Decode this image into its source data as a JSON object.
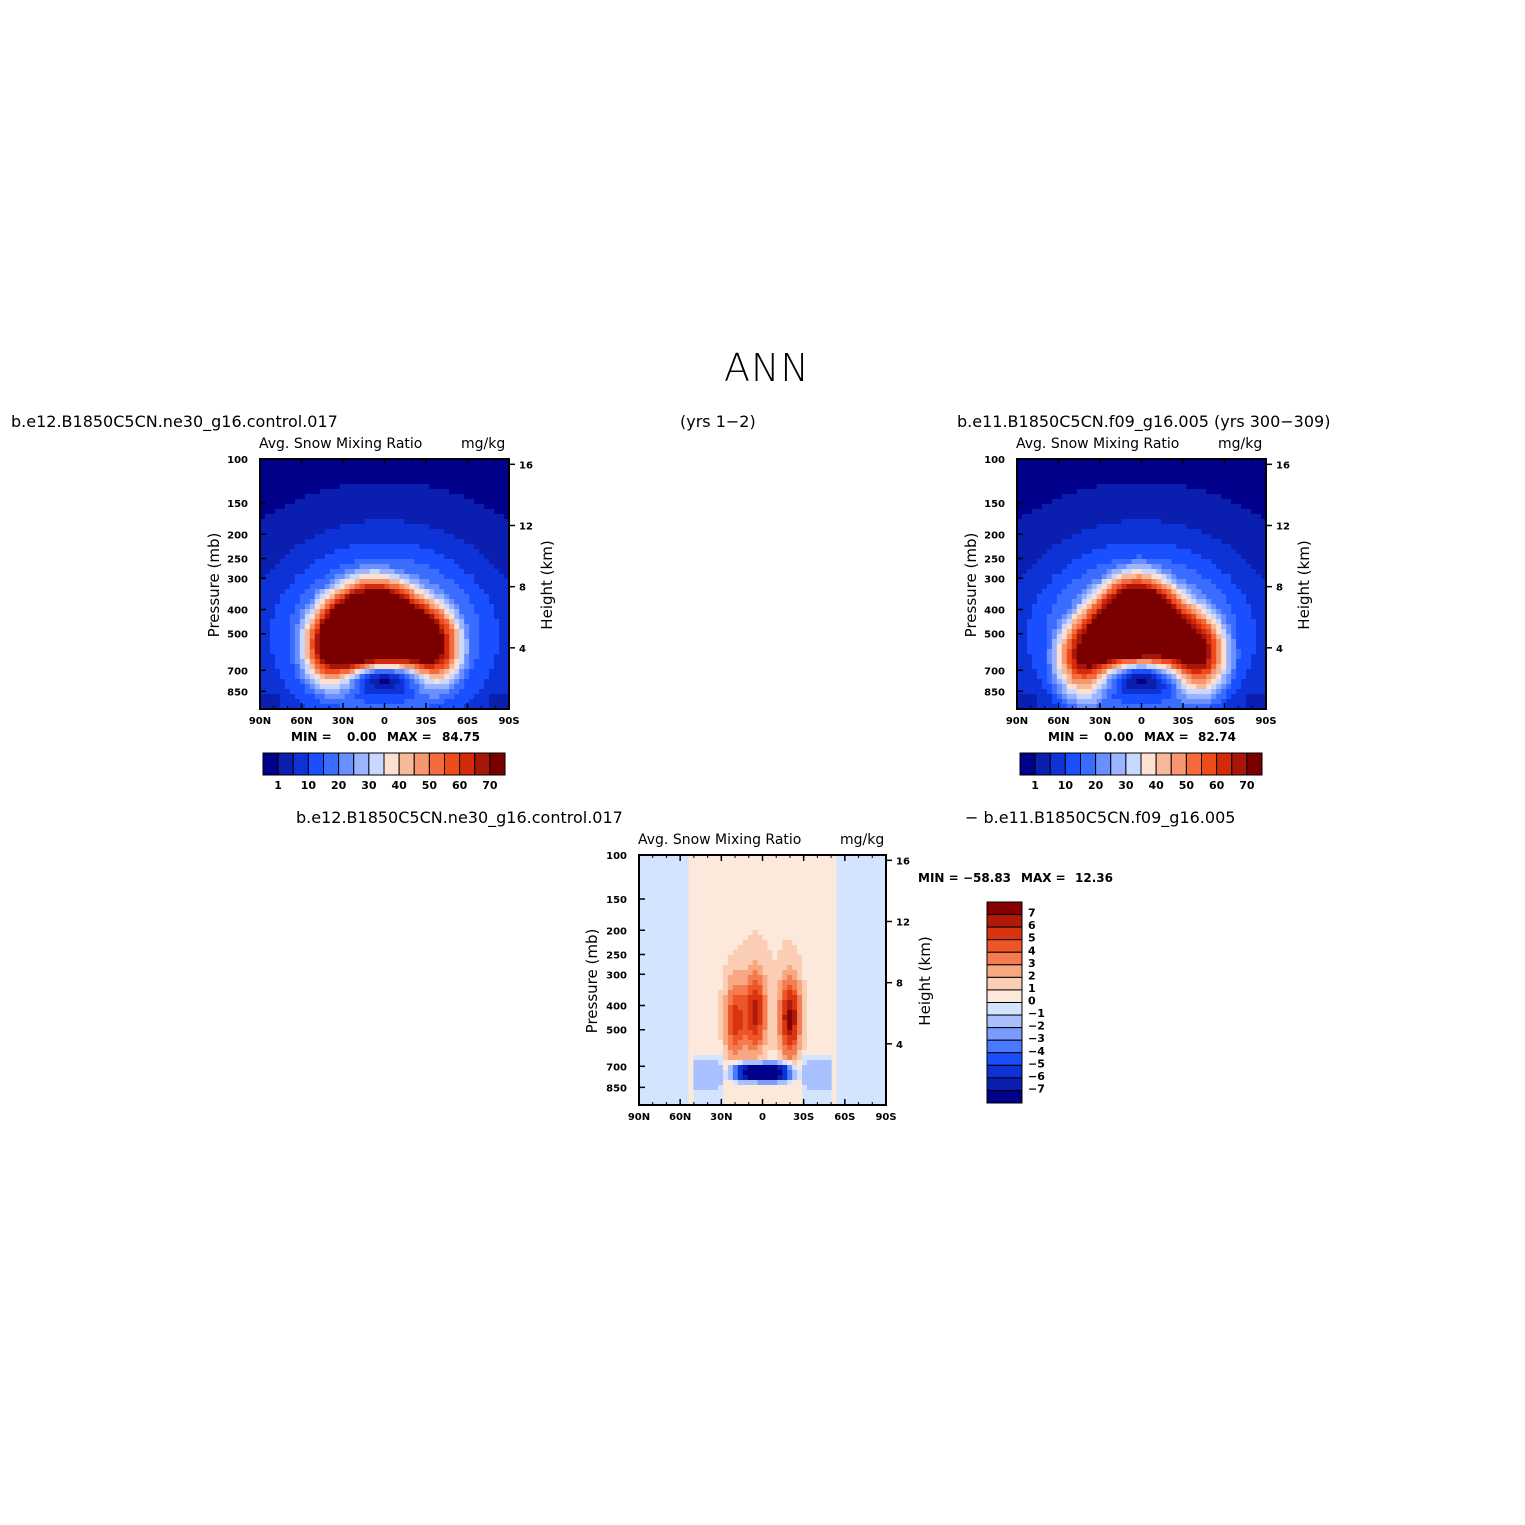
{
  "figure": {
    "title": "ANN",
    "top_left_label": "b.e12.B1850C5CN.ne30_g16.control.017",
    "top_mid_label": "(yrs 1−2)",
    "top_right_label": "b.e11.B1850C5CN.f09_g16.005 (yrs 300−309)",
    "bottom_left_label": "b.e12.B1850C5CN.ne30_g16.control.017",
    "bottom_right_label": "− b.e11.B1850C5CN.f09_g16.005"
  },
  "colors": {
    "abs_palette": [
      "#00008a",
      "#0a1fb0",
      "#0d32d6",
      "#1a4fff",
      "#3a6cff",
      "#6a90ff",
      "#9ab4ff",
      "#c8d8ff",
      "#fde0d0",
      "#f8b89a",
      "#f69670",
      "#f46a3c",
      "#ee4a1a",
      "#d42a0a",
      "#a8160a",
      "#7a0000"
    ],
    "diff_palette": [
      "#00008a",
      "#0a1fb0",
      "#0d32d6",
      "#1a4fff",
      "#4a78ff",
      "#7a9cff",
      "#a8c0ff",
      "#d4e4ff",
      "#fde8dc",
      "#fbcdb4",
      "#f8a880",
      "#f47c50",
      "#ee5628",
      "#d83410",
      "#b01a0a",
      "#850000"
    ]
  },
  "chart_data": [
    {
      "type": "heatmap",
      "panel": "control",
      "title": "Avg. Snow Mixing Ratio",
      "units": "mg/kg",
      "xlabel": "",
      "ylabel": "Pressure (mb)",
      "y2label": "Height (km)",
      "x_ticks": [
        "90N",
        "60N",
        "30N",
        "0",
        "30S",
        "60S",
        "90S"
      ],
      "y_ticks": [
        "100",
        "150",
        "200",
        "250",
        "300",
        "400",
        "500",
        "700",
        "850"
      ],
      "y_tick_values": [
        100,
        150,
        200,
        250,
        300,
        400,
        500,
        700,
        850
      ],
      "y2_ticks": [
        "16",
        "12",
        "8",
        "4"
      ],
      "y2_tick_values": [
        16,
        12,
        8,
        4
      ],
      "min_label": "MIN =",
      "min": "0.00",
      "max_label": "MAX =",
      "max": "84.75",
      "colorbar_labels": [
        "1",
        "10",
        "20",
        "30",
        "40",
        "50",
        "60",
        "70"
      ],
      "features": [
        {
          "lat": -5,
          "p": 480,
          "value": 82
        },
        {
          "lat": 15,
          "p": 470,
          "value": 80
        },
        {
          "lat": -35,
          "p": 560,
          "value": 72
        },
        {
          "lat": 38,
          "p": 560,
          "value": 70
        },
        {
          "lat": 0,
          "p": 800,
          "value": 1
        }
      ]
    },
    {
      "type": "heatmap",
      "panel": "reference",
      "title": "Avg. Snow Mixing Ratio",
      "units": "mg/kg",
      "xlabel": "",
      "ylabel": "Pressure (mb)",
      "y2label": "Height (km)",
      "x_ticks": [
        "90N",
        "60N",
        "30N",
        "0",
        "30S",
        "60S",
        "90S"
      ],
      "y_ticks": [
        "100",
        "150",
        "200",
        "250",
        "300",
        "400",
        "500",
        "700",
        "850"
      ],
      "y_tick_values": [
        100,
        150,
        200,
        250,
        300,
        400,
        500,
        700,
        850
      ],
      "y2_ticks": [
        "16",
        "12",
        "8",
        "4"
      ],
      "y2_tick_values": [
        16,
        12,
        8,
        4
      ],
      "min_label": "MIN =",
      "min": "0.00",
      "max_label": "MAX =",
      "max": "82.74",
      "colorbar_labels": [
        "1",
        "10",
        "20",
        "30",
        "40",
        "50",
        "60",
        "70"
      ],
      "features": [
        {
          "lat": -8,
          "p": 460,
          "value": 78
        },
        {
          "lat": 12,
          "p": 450,
          "value": 76
        },
        {
          "lat": -40,
          "p": 600,
          "value": 74
        },
        {
          "lat": 40,
          "p": 620,
          "value": 70
        },
        {
          "lat": 0,
          "p": 800,
          "value": 1
        }
      ]
    },
    {
      "type": "heatmap",
      "panel": "difference",
      "title": "Avg. Snow Mixing Ratio",
      "units": "mg/kg",
      "xlabel": "",
      "ylabel": "Pressure (mb)",
      "y2label": "Height (km)",
      "x_ticks": [
        "90N",
        "60N",
        "30N",
        "0",
        "30S",
        "60S",
        "90S"
      ],
      "y_ticks": [
        "100",
        "150",
        "200",
        "250",
        "300",
        "400",
        "500",
        "700",
        "850"
      ],
      "y_tick_values": [
        100,
        150,
        200,
        250,
        300,
        400,
        500,
        700,
        850
      ],
      "y2_ticks": [
        "16",
        "12",
        "8",
        "4"
      ],
      "y2_tick_values": [
        16,
        12,
        8,
        4
      ],
      "min_label": "MIN =",
      "min": "−58.83",
      "max_label": "MAX =",
      "max": "12.36",
      "colorbar_labels": [
        "7",
        "6",
        "5",
        "4",
        "3",
        "2",
        "1",
        "0",
        "−1",
        "−2",
        "−3",
        "−4",
        "−5",
        "−6",
        "−7"
      ],
      "features": [
        {
          "lat": -20,
          "p": 450,
          "value": 7
        },
        {
          "lat": 5,
          "p": 430,
          "value": 6
        },
        {
          "lat": 20,
          "p": 460,
          "value": 5
        },
        {
          "lat": 0,
          "p": 730,
          "value": -7
        }
      ]
    }
  ]
}
